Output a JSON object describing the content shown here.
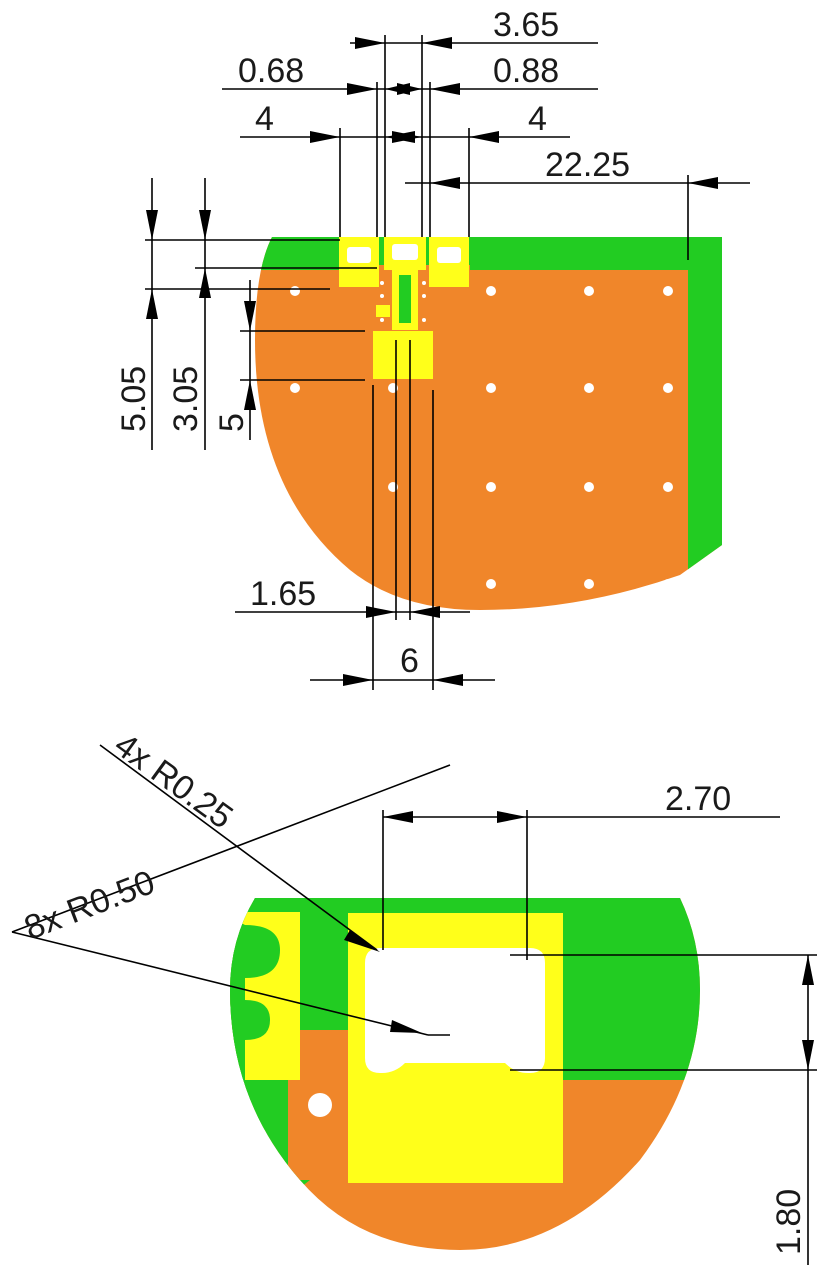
{
  "colors": {
    "copper": "#f0862a",
    "mask": "#22cc22",
    "pad": "#ffff1a",
    "via": "#ffffff",
    "line": "#000000"
  },
  "top_view": {
    "dims": {
      "d365": "3.65",
      "d068": "0.68",
      "d088": "0.88",
      "d4_left": "4",
      "d4_right": "4",
      "d2225": "22.25",
      "d505": "5.05",
      "d305": "3.05",
      "d5": "5",
      "d165": "1.65",
      "d6": "6"
    }
  },
  "bottom_view": {
    "dims": {
      "r025": "4x R0.25",
      "r050": "8x R0.50",
      "d270": "2.70",
      "d180": "1.80"
    }
  }
}
